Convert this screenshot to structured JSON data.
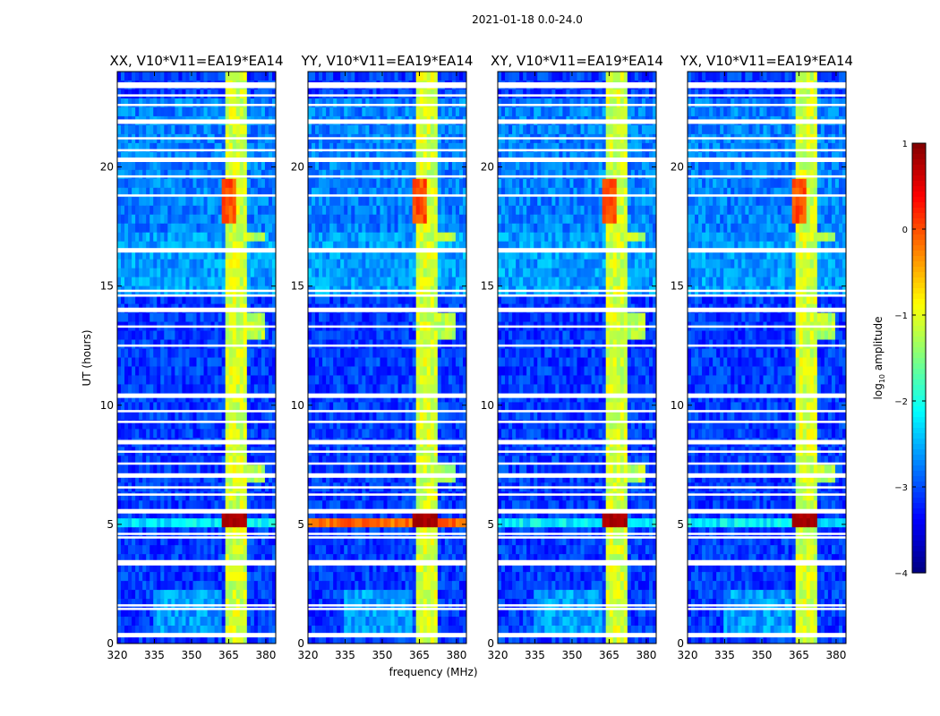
{
  "figure": {
    "suptitle": "2021-01-18 0.0-24.0",
    "xlabel": "frequency (MHz)",
    "ylabel": "UT (hours)",
    "colorbar_label": "log",
    "colorbar_label_sub": "10",
    "colorbar_label_rest": " amplitude"
  },
  "chart_data": {
    "type": "heatmap",
    "title": "2021-01-18 0.0-24.0",
    "xlabel": "frequency (MHz)",
    "ylabel": "UT (hours)",
    "xlim": [
      320,
      384
    ],
    "ylim": [
      0,
      24
    ],
    "xticks": [
      320,
      335,
      350,
      365,
      380
    ],
    "yticks": [
      0,
      5,
      10,
      15,
      20
    ],
    "colorbar": {
      "label": "log10 amplitude",
      "range": [
        -4,
        1
      ],
      "ticks": [
        1,
        0,
        -1,
        -2,
        -3,
        -4
      ],
      "tick_labels": [
        "1",
        "0",
        "−1",
        "−2",
        "−3",
        "−4"
      ],
      "colormap": "jet"
    },
    "panels": [
      {
        "title": "XX, V10*V11=EA19*EA14",
        "product": "XX"
      },
      {
        "title": "YY, V10*V11=EA19*EA14",
        "product": "YY"
      },
      {
        "title": "XY, V10*V11=EA19*EA14",
        "product": "XY"
      },
      {
        "title": "YX, V10*V11=EA19*EA14",
        "product": "YX"
      }
    ],
    "features": {
      "flagged_hours": [
        0.35,
        1.45,
        1.6,
        3.4,
        4.45,
        4.6,
        5.55,
        6.25,
        6.55,
        7.05,
        7.55,
        8.05,
        8.45,
        9.3,
        9.75,
        10.4,
        12.5,
        13.3,
        14.0,
        14.6,
        14.8,
        16.5,
        18.8,
        19.6,
        20.3,
        20.7,
        21.2,
        21.9,
        22.6,
        23.0,
        23.4
      ],
      "rfi_channels_MHz": [
        [
          363.5,
          368.0
        ],
        [
          368.5,
          372.0
        ]
      ],
      "strong_event_hours": [
        4.8,
        5.4
      ],
      "strong_event_level": 0.9
    }
  }
}
